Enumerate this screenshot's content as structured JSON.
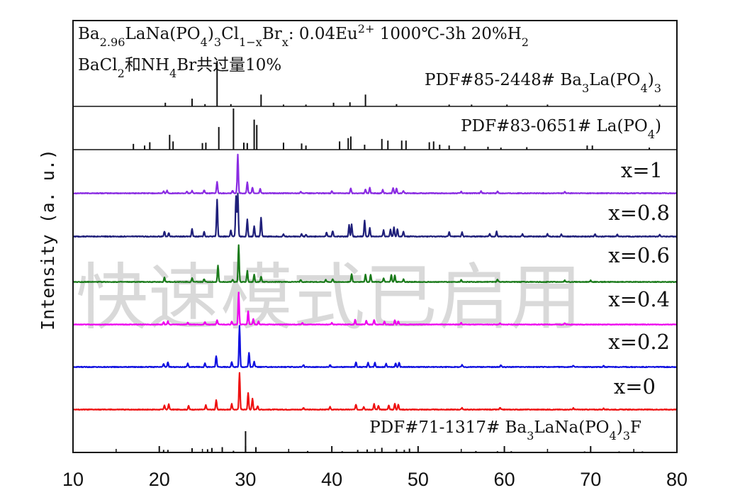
{
  "chart_data": {
    "type": "line",
    "title": "",
    "xlabel": "",
    "ylabel": "Intensity (a. u.)",
    "xlim": [
      10,
      80
    ],
    "x_ticks": [
      10,
      20,
      30,
      40,
      50,
      60,
      70,
      80
    ],
    "y_ticks": [],
    "grid": false,
    "legend": "none",
    "annotation_lines": [
      {
        "key": "sample",
        "parts": [
          [
            "Ba",
            ""
          ],
          [
            "2.96",
            "sub"
          ],
          [
            "LaNa(PO",
            ""
          ],
          [
            "4",
            "sub"
          ],
          [
            ")",
            ""
          ],
          [
            "3",
            "sub"
          ],
          [
            "Cl",
            ""
          ],
          [
            "1−x",
            "sub"
          ],
          [
            "Br",
            ""
          ],
          [
            "x",
            "sub"
          ],
          [
            ": 0.04Eu",
            ""
          ],
          [
            "2+",
            "sup"
          ],
          [
            " 1000℃-3h 20%H",
            ""
          ],
          [
            "2",
            "sub"
          ]
        ]
      },
      {
        "key": "flux",
        "parts": [
          [
            "BaCl",
            ""
          ],
          [
            "2",
            "sub"
          ],
          [
            "和NH",
            ""
          ],
          [
            "4",
            "sub"
          ],
          [
            "Br共过量10%",
            ""
          ]
        ]
      }
    ],
    "reference_patterns": [
      {
        "name": "PDF#85-2448# Ba3La(PO4)3",
        "label_parts": [
          [
            "PDF#85-2448# Ba",
            ""
          ],
          [
            "3",
            "sub"
          ],
          [
            "La(PO",
            ""
          ],
          [
            "4",
            "sub"
          ],
          [
            ")",
            ""
          ],
          [
            "3",
            "sub"
          ]
        ],
        "peaks": [
          [
            20.7,
            0.08
          ],
          [
            23.8,
            0.17
          ],
          [
            25.3,
            0.05
          ],
          [
            26.7,
            1.0
          ],
          [
            28.3,
            0.05
          ],
          [
            31.8,
            0.26
          ],
          [
            34.4,
            0.04
          ],
          [
            37.0,
            0.04
          ],
          [
            40.2,
            0.08
          ],
          [
            42.1,
            0.09
          ],
          [
            43.9,
            0.26
          ],
          [
            47.5,
            0.05
          ],
          [
            53.6,
            0.04
          ],
          [
            56.2,
            0.04
          ],
          [
            60.3,
            0.04
          ],
          [
            65.0,
            0.04
          ],
          [
            78.0,
            0.04
          ]
        ]
      },
      {
        "name": "PDF#83-0651# La(PO4)",
        "label_parts": [
          [
            "PDF#83-0651# La(PO",
            ""
          ],
          [
            "4",
            "sub"
          ],
          [
            ")",
            ""
          ]
        ],
        "peaks": [
          [
            17.0,
            0.14
          ],
          [
            18.3,
            0.1
          ],
          [
            18.9,
            0.18
          ],
          [
            21.2,
            0.36
          ],
          [
            21.6,
            0.2
          ],
          [
            25.0,
            0.16
          ],
          [
            25.4,
            0.17
          ],
          [
            26.9,
            0.55
          ],
          [
            28.6,
            1.0
          ],
          [
            29.8,
            0.17
          ],
          [
            30.2,
            0.16
          ],
          [
            31.0,
            0.73
          ],
          [
            31.3,
            0.6
          ],
          [
            34.4,
            0.17
          ],
          [
            36.5,
            0.15
          ],
          [
            37.0,
            0.1
          ],
          [
            40.9,
            0.2
          ],
          [
            41.9,
            0.28
          ],
          [
            42.2,
            0.32
          ],
          [
            43.8,
            0.12
          ],
          [
            45.8,
            0.26
          ],
          [
            46.5,
            0.22
          ],
          [
            48.1,
            0.22
          ],
          [
            48.6,
            0.22
          ],
          [
            51.3,
            0.18
          ],
          [
            51.8,
            0.2
          ],
          [
            52.5,
            0.12
          ],
          [
            53.6,
            0.1
          ],
          [
            55.4,
            0.08
          ],
          [
            58.1,
            0.07
          ],
          [
            59.6,
            0.05
          ],
          [
            62.6,
            0.06
          ],
          [
            69.6,
            0.1
          ],
          [
            70.2,
            0.1
          ],
          [
            76.8,
            0.05
          ]
        ]
      },
      {
        "name": "PDF#71-1317# Ba3LaNa(PO4)3F",
        "label_parts": [
          [
            "PDF#71-1317# Ba",
            ""
          ],
          [
            "3",
            "sub"
          ],
          [
            "LaNa(PO",
            ""
          ],
          [
            "4",
            "sub"
          ],
          [
            ")",
            ""
          ],
          [
            "3",
            "sub"
          ],
          [
            "F",
            ""
          ]
        ],
        "peaks": [
          [
            20.5,
            0.12
          ],
          [
            21.0,
            0.12
          ],
          [
            23.8,
            0.2
          ],
          [
            25.6,
            0.15
          ],
          [
            26.1,
            0.21
          ],
          [
            27.3,
            0.25
          ],
          [
            28.6,
            0.08
          ],
          [
            30.0,
            1.0
          ],
          [
            31.2,
            0.25
          ],
          [
            35.0,
            0.05
          ],
          [
            37.2,
            0.07
          ],
          [
            41.2,
            0.06
          ],
          [
            43.0,
            0.12
          ],
          [
            44.1,
            0.14
          ],
          [
            45.8,
            0.22
          ],
          [
            47.5,
            0.15
          ],
          [
            48.4,
            0.12
          ],
          [
            49.0,
            0.18
          ],
          [
            56.7,
            0.07
          ],
          [
            59.2,
            0.06
          ],
          [
            60.8,
            0.06
          ],
          [
            69.3,
            0.05
          ],
          [
            73.3,
            0.05
          ],
          [
            76.0,
            0.05
          ]
        ]
      }
    ],
    "series": [
      {
        "name": "x=1",
        "label": "x=1",
        "color": "#8a2be2",
        "peaks": [
          [
            20.5,
            0.05
          ],
          [
            20.9,
            0.07
          ],
          [
            23.2,
            0.05
          ],
          [
            23.8,
            0.06
          ],
          [
            25.2,
            0.08
          ],
          [
            26.7,
            0.3
          ],
          [
            28.5,
            0.07
          ],
          [
            29.1,
            1.0
          ],
          [
            30.2,
            0.28
          ],
          [
            30.8,
            0.15
          ],
          [
            31.7,
            0.12
          ],
          [
            36.4,
            0.05
          ],
          [
            40.0,
            0.06
          ],
          [
            42.2,
            0.13
          ],
          [
            43.9,
            0.1
          ],
          [
            44.4,
            0.15
          ],
          [
            45.9,
            0.09
          ],
          [
            47.1,
            0.14
          ],
          [
            47.5,
            0.13
          ],
          [
            48.3,
            0.06
          ],
          [
            55.0,
            0.05
          ],
          [
            57.3,
            0.05
          ],
          [
            59.2,
            0.05
          ],
          [
            67.0,
            0.04
          ]
        ]
      },
      {
        "name": "x=0.8",
        "label": "x=0.8",
        "color": "#1f1f7a",
        "peaks": [
          [
            20.6,
            0.12
          ],
          [
            21.1,
            0.08
          ],
          [
            23.8,
            0.18
          ],
          [
            25.2,
            0.12
          ],
          [
            26.7,
            0.87
          ],
          [
            28.3,
            0.15
          ],
          [
            28.9,
            0.95
          ],
          [
            29.1,
            1.0
          ],
          [
            30.2,
            0.4
          ],
          [
            31.0,
            0.25
          ],
          [
            31.8,
            0.45
          ],
          [
            34.4,
            0.05
          ],
          [
            36.5,
            0.06
          ],
          [
            37.0,
            0.05
          ],
          [
            39.4,
            0.1
          ],
          [
            40.1,
            0.13
          ],
          [
            42.0,
            0.27
          ],
          [
            42.3,
            0.28
          ],
          [
            43.8,
            0.38
          ],
          [
            44.4,
            0.2
          ],
          [
            46.0,
            0.15
          ],
          [
            46.8,
            0.17
          ],
          [
            47.2,
            0.22
          ],
          [
            47.6,
            0.18
          ],
          [
            48.3,
            0.12
          ],
          [
            53.6,
            0.1
          ],
          [
            55.1,
            0.1
          ],
          [
            58.3,
            0.06
          ],
          [
            59.1,
            0.12
          ],
          [
            62.1,
            0.06
          ],
          [
            65.0,
            0.06
          ],
          [
            66.6,
            0.05
          ],
          [
            70.5,
            0.06
          ],
          [
            73.1,
            0.05
          ],
          [
            78.0,
            0.04
          ]
        ]
      },
      {
        "name": "x=0.6",
        "label": "x=0.6",
        "color": "#1a7a1a",
        "peaks": [
          [
            20.6,
            0.12
          ],
          [
            23.8,
            0.1
          ],
          [
            25.2,
            0.08
          ],
          [
            26.8,
            0.45
          ],
          [
            28.5,
            0.06
          ],
          [
            29.2,
            1.0
          ],
          [
            30.2,
            0.3
          ],
          [
            31.0,
            0.2
          ],
          [
            31.8,
            0.15
          ],
          [
            36.4,
            0.06
          ],
          [
            39.3,
            0.06
          ],
          [
            40.1,
            0.08
          ],
          [
            42.3,
            0.22
          ],
          [
            43.9,
            0.2
          ],
          [
            44.5,
            0.2
          ],
          [
            46.0,
            0.1
          ],
          [
            46.9,
            0.2
          ],
          [
            47.3,
            0.18
          ],
          [
            48.3,
            0.07
          ],
          [
            55.0,
            0.06
          ],
          [
            59.2,
            0.07
          ],
          [
            67.0,
            0.04
          ],
          [
            70.0,
            0.04
          ]
        ]
      },
      {
        "name": "x=0.4",
        "label": "x=0.4",
        "color": "#ee00ee",
        "peaks": [
          [
            20.5,
            0.08
          ],
          [
            21.0,
            0.1
          ],
          [
            23.3,
            0.06
          ],
          [
            25.3,
            0.08
          ],
          [
            26.7,
            0.13
          ],
          [
            28.4,
            0.1
          ],
          [
            29.2,
            1.0
          ],
          [
            30.3,
            0.42
          ],
          [
            30.9,
            0.18
          ],
          [
            31.5,
            0.1
          ],
          [
            36.6,
            0.05
          ],
          [
            40.0,
            0.05
          ],
          [
            42.7,
            0.15
          ],
          [
            44.0,
            0.12
          ],
          [
            44.9,
            0.14
          ],
          [
            46.1,
            0.09
          ],
          [
            47.3,
            0.13
          ],
          [
            47.7,
            0.1
          ],
          [
            55.0,
            0.05
          ],
          [
            59.5,
            0.04
          ],
          [
            67.0,
            0.04
          ]
        ]
      },
      {
        "name": "x=0.2",
        "label": "x=0.2",
        "color": "#1010e0",
        "peaks": [
          [
            20.5,
            0.08
          ],
          [
            21.0,
            0.12
          ],
          [
            23.3,
            0.08
          ],
          [
            25.3,
            0.1
          ],
          [
            26.6,
            0.27
          ],
          [
            28.4,
            0.12
          ],
          [
            29.3,
            1.0
          ],
          [
            30.4,
            0.35
          ],
          [
            31.0,
            0.13
          ],
          [
            36.7,
            0.05
          ],
          [
            39.8,
            0.05
          ],
          [
            42.8,
            0.12
          ],
          [
            44.2,
            0.1
          ],
          [
            45.0,
            0.11
          ],
          [
            46.3,
            0.08
          ],
          [
            47.4,
            0.09
          ],
          [
            47.8,
            0.1
          ],
          [
            55.1,
            0.05
          ],
          [
            59.6,
            0.05
          ],
          [
            68.0,
            0.04
          ],
          [
            71.5,
            0.03
          ]
        ]
      },
      {
        "name": "x=0",
        "label": "x=0",
        "color": "#ee1111",
        "peaks": [
          [
            20.6,
            0.12
          ],
          [
            21.1,
            0.15
          ],
          [
            23.4,
            0.1
          ],
          [
            25.4,
            0.12
          ],
          [
            26.6,
            0.25
          ],
          [
            28.4,
            0.15
          ],
          [
            29.3,
            1.0
          ],
          [
            30.3,
            0.45
          ],
          [
            30.8,
            0.3
          ],
          [
            31.4,
            0.1
          ],
          [
            36.7,
            0.05
          ],
          [
            39.8,
            0.07
          ],
          [
            42.8,
            0.14
          ],
          [
            43.7,
            0.08
          ],
          [
            44.9,
            0.15
          ],
          [
            45.4,
            0.1
          ],
          [
            46.6,
            0.12
          ],
          [
            47.3,
            0.16
          ],
          [
            47.7,
            0.14
          ],
          [
            55.1,
            0.05
          ],
          [
            59.5,
            0.05
          ],
          [
            68.0,
            0.04
          ],
          [
            71.5,
            0.03
          ]
        ]
      }
    ]
  },
  "watermark": "快速模式已启用"
}
